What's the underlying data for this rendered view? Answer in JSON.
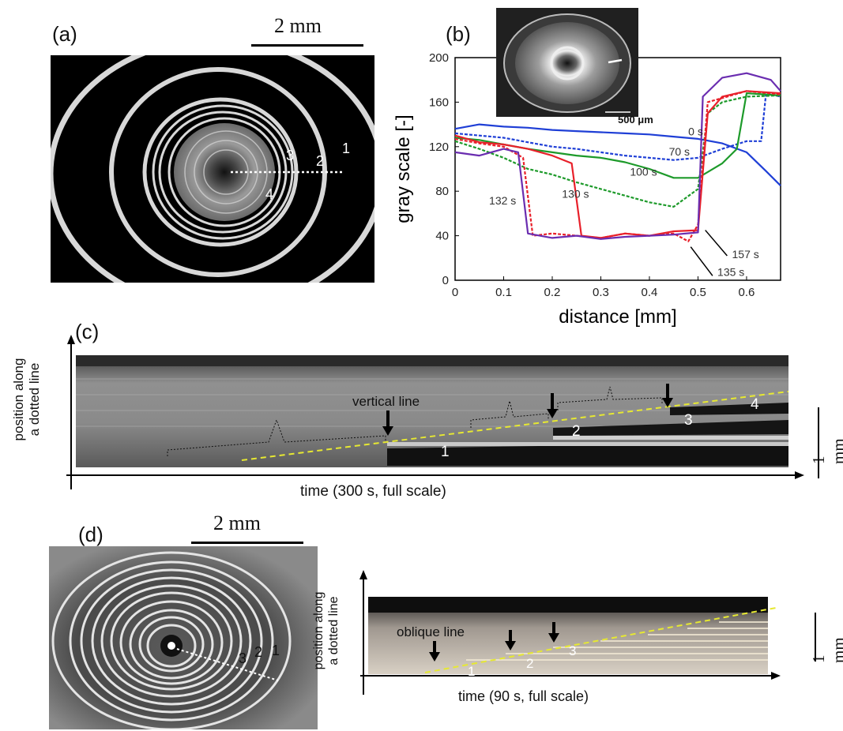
{
  "panels": {
    "a": {
      "label": "(a)",
      "scale_bar": "2 mm",
      "ring_labels": [
        "1",
        "2",
        "3",
        "4"
      ]
    },
    "b": {
      "label": "(b)",
      "inset_scale": "500 μm",
      "curve_labels": [
        "0 s",
        "70 s",
        "100 s",
        "130 s",
        "132 s",
        "135 s",
        "157 s"
      ]
    },
    "c": {
      "label": "(c)",
      "y_label_line1": "position along",
      "y_label_line2": "a dotted line",
      "x_label": "time (300 s, full scale)",
      "annotation": "vertical line",
      "numbers": [
        "1",
        "2",
        "3",
        "4"
      ],
      "scale_bar": "1 mm"
    },
    "d": {
      "label": "(d)",
      "scale_bar": "2 mm",
      "ring_labels": [
        "3",
        "2",
        "1"
      ],
      "y_label_line1": "position along",
      "y_label_line2": "a dotted line",
      "x_label": "time (90 s, full scale)",
      "annotation": "oblique line",
      "numbers": [
        "1",
        "2",
        "3"
      ],
      "scale_bar_right": "1 mm"
    }
  },
  "colors": {
    "blue": "#1f3fd6",
    "green": "#1d9a2a",
    "red": "#e8202a",
    "purple": "#6a2db0",
    "dashed_yellow": "#e6e832"
  },
  "chart_data": {
    "type": "line",
    "xlabel": "distance [mm]",
    "ylabel": "gray scale [-]",
    "xlim": [
      0,
      0.67
    ],
    "ylim": [
      0,
      200
    ],
    "xticks": [
      "0",
      "0.1",
      "0.2",
      "0.3",
      "0.4",
      "0.5",
      "0.6"
    ],
    "yticks": [
      "0",
      "40",
      "80",
      "120",
      "160",
      "200"
    ],
    "series": [
      {
        "name": "0 s",
        "color": "#1f3fd6",
        "dash": false,
        "x": [
          0,
          0.05,
          0.1,
          0.15,
          0.2,
          0.25,
          0.3,
          0.35,
          0.4,
          0.45,
          0.5,
          0.55,
          0.6,
          0.64,
          0.67
        ],
        "y": [
          136,
          140,
          138,
          137,
          135,
          134,
          133,
          132,
          131,
          129,
          127,
          123,
          115,
          98,
          85
        ]
      },
      {
        "name": "70 s",
        "color": "#1f3fd6",
        "dash": true,
        "x": [
          0,
          0.05,
          0.1,
          0.15,
          0.2,
          0.25,
          0.3,
          0.35,
          0.4,
          0.45,
          0.5,
          0.55,
          0.6,
          0.63,
          0.64,
          0.67
        ],
        "y": [
          132,
          130,
          128,
          124,
          120,
          118,
          115,
          112,
          110,
          108,
          110,
          118,
          125,
          125,
          168,
          165
        ]
      },
      {
        "name": "100 s",
        "color": "#1d9a2a",
        "dash": false,
        "x": [
          0,
          0.05,
          0.1,
          0.15,
          0.2,
          0.25,
          0.3,
          0.35,
          0.4,
          0.45,
          0.5,
          0.55,
          0.58,
          0.6,
          0.67
        ],
        "y": [
          128,
          126,
          122,
          118,
          115,
          112,
          110,
          106,
          100,
          92,
          92,
          105,
          118,
          168,
          166
        ]
      },
      {
        "name": "130 s",
        "color": "#1d9a2a",
        "dash": true,
        "x": [
          0,
          0.05,
          0.1,
          0.15,
          0.2,
          0.25,
          0.3,
          0.35,
          0.4,
          0.45,
          0.5,
          0.52,
          0.55,
          0.6,
          0.67
        ],
        "y": [
          125,
          118,
          110,
          100,
          95,
          88,
          82,
          76,
          70,
          66,
          82,
          150,
          160,
          165,
          166
        ]
      },
      {
        "name": "132 s",
        "color": "#e8202a",
        "dash": false,
        "x": [
          0,
          0.05,
          0.1,
          0.15,
          0.2,
          0.24,
          0.26,
          0.3,
          0.35,
          0.4,
          0.45,
          0.5,
          0.52,
          0.55,
          0.6,
          0.67
        ],
        "y": [
          130,
          124,
          122,
          118,
          112,
          105,
          40,
          38,
          42,
          40,
          44,
          45,
          150,
          165,
          170,
          168
        ]
      },
      {
        "name": "135 s",
        "color": "#e8202a",
        "dash": true,
        "x": [
          0,
          0.05,
          0.1,
          0.14,
          0.16,
          0.2,
          0.25,
          0.3,
          0.35,
          0.4,
          0.45,
          0.48,
          0.5,
          0.52,
          0.56,
          0.6,
          0.67
        ],
        "y": [
          127,
          123,
          120,
          110,
          40,
          42,
          40,
          38,
          42,
          40,
          42,
          35,
          50,
          160,
          165,
          170,
          167
        ]
      },
      {
        "name": "157 s",
        "color": "#6a2db0",
        "dash": false,
        "x": [
          0,
          0.05,
          0.1,
          0.13,
          0.15,
          0.2,
          0.25,
          0.3,
          0.35,
          0.4,
          0.45,
          0.5,
          0.51,
          0.55,
          0.6,
          0.65,
          0.67
        ],
        "y": [
          115,
          112,
          118,
          115,
          42,
          38,
          40,
          37,
          39,
          40,
          41,
          43,
          165,
          182,
          186,
          180,
          170
        ]
      }
    ]
  }
}
